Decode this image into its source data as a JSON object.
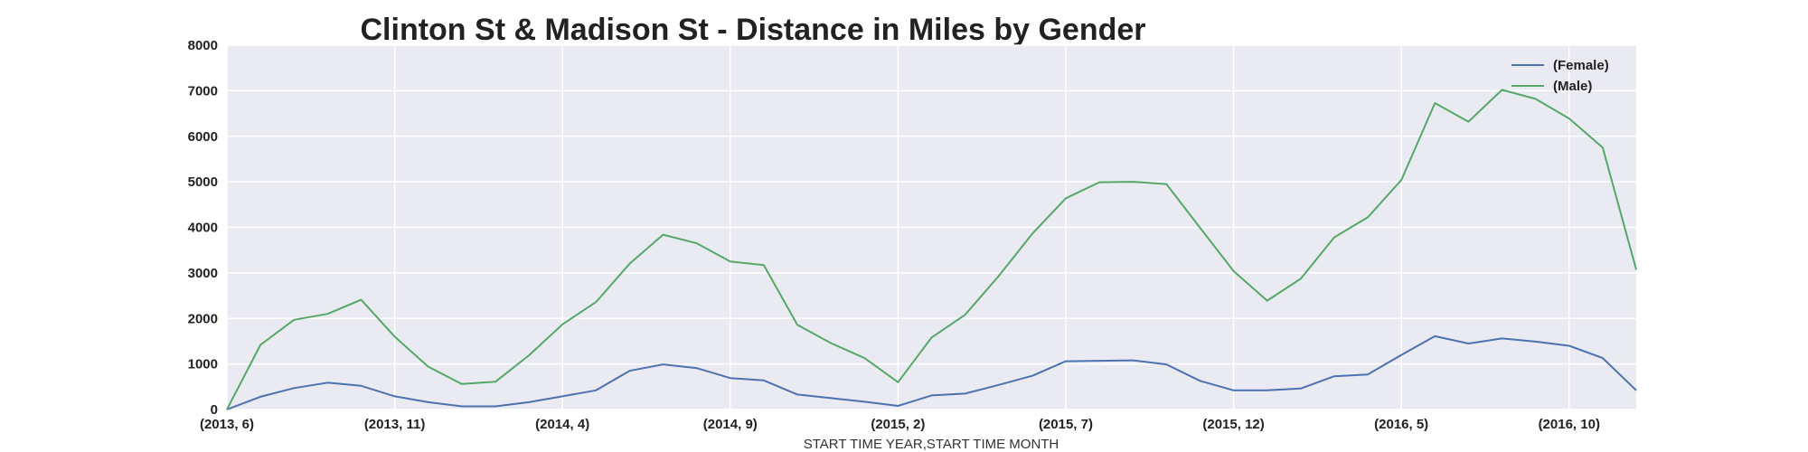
{
  "chart_data": {
    "type": "line",
    "title": "Clinton St & Madison St - Distance in Miles by Gender",
    "xlabel": "START TIME YEAR,START TIME MONTH",
    "ylabel": "",
    "ylim": [
      0,
      8000
    ],
    "yticks": [
      "0",
      "1000",
      "2000",
      "3000",
      "4000",
      "5000",
      "6000",
      "7000",
      "8000"
    ],
    "x": [
      "(2013, 6)",
      "(2013, 7)",
      "(2013, 8)",
      "(2013, 9)",
      "(2013, 10)",
      "(2013, 11)",
      "(2013, 12)",
      "(2014, 1)",
      "(2014, 2)",
      "(2014, 3)",
      "(2014, 4)",
      "(2014, 5)",
      "(2014, 6)",
      "(2014, 7)",
      "(2014, 8)",
      "(2014, 9)",
      "(2014, 10)",
      "(2014, 11)",
      "(2014, 12)",
      "(2015, 1)",
      "(2015, 2)",
      "(2015, 3)",
      "(2015, 4)",
      "(2015, 5)",
      "(2015, 6)",
      "(2015, 7)",
      "(2015, 8)",
      "(2015, 9)",
      "(2015, 10)",
      "(2015, 11)",
      "(2015, 12)",
      "(2016, 1)",
      "(2016, 2)",
      "(2016, 3)",
      "(2016, 4)",
      "(2016, 5)",
      "(2016, 6)",
      "(2016, 7)",
      "(2016, 8)",
      "(2016, 9)",
      "(2016, 10)",
      "(2016, 11)",
      "(2016, 12)"
    ],
    "xticks": [
      "(2013, 6)",
      "(2013, 11)",
      "(2014, 4)",
      "(2014, 9)",
      "(2015, 2)",
      "(2015, 7)",
      "(2015, 12)",
      "(2016, 5)",
      "(2016, 10)"
    ],
    "grid": true,
    "legend_position": "top-right",
    "series": [
      {
        "name": "(Female)",
        "color": "#4c72b0",
        "values": [
          0,
          280,
          470,
          590,
          520,
          290,
          160,
          70,
          70,
          160,
          290,
          420,
          850,
          990,
          910,
          690,
          640,
          330,
          250,
          170,
          80,
          310,
          350,
          540,
          740,
          1060,
          1070,
          1080,
          990,
          630,
          420,
          420,
          460,
          730,
          770,
          1200,
          1610,
          1450,
          1560,
          1490,
          1400,
          1130,
          420
        ]
      },
      {
        "name": "(Male)",
        "color": "#55a868",
        "values": [
          0,
          1420,
          1970,
          2100,
          2410,
          1600,
          940,
          560,
          610,
          1190,
          1870,
          2360,
          3200,
          3840,
          3650,
          3250,
          3170,
          1860,
          1460,
          1130,
          600,
          1580,
          2080,
          2930,
          3860,
          4640,
          4990,
          5000,
          4950,
          3990,
          3040,
          2390,
          2870,
          3780,
          4220,
          5040,
          6730,
          6320,
          7020,
          6820,
          6390,
          5750,
          3070
        ]
      }
    ]
  }
}
